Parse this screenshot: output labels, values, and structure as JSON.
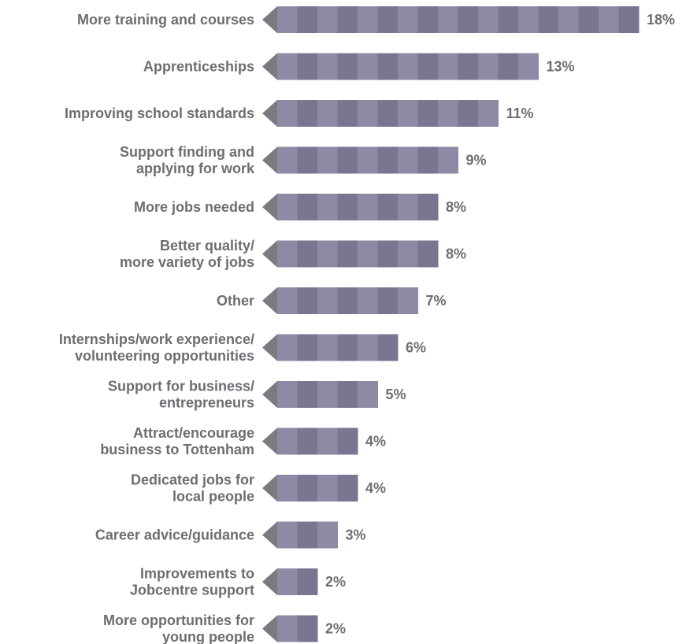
{
  "chart_data": {
    "type": "bar",
    "orientation": "horizontal",
    "title": "",
    "xlabel": "",
    "ylabel": "",
    "unit": "%",
    "grid": false,
    "legend": "none",
    "xlim": [
      0,
      18
    ],
    "categories": [
      [
        "More training and courses"
      ],
      [
        "Apprenticeships"
      ],
      [
        "Improving school standards"
      ],
      [
        "Support finding and",
        "applying for work"
      ],
      [
        "More jobs needed"
      ],
      [
        "Better quality/",
        "more variety of jobs"
      ],
      [
        "Other"
      ],
      [
        "Internships/work experience/",
        "volunteering opportunities"
      ],
      [
        "Support for business/",
        "entrepreneurs"
      ],
      [
        "Attract/encourage",
        "business to Tottenham"
      ],
      [
        "Dedicated jobs for",
        "local people"
      ],
      [
        "Career advice/guidance"
      ],
      [
        "Improvements to",
        "Jobcentre support"
      ],
      [
        "More opportunities for",
        "young people"
      ]
    ],
    "values": [
      18,
      13,
      11,
      9,
      8,
      8,
      7,
      6,
      5,
      4,
      4,
      3,
      2,
      2
    ],
    "value_labels": [
      "18%",
      "13%",
      "11%",
      "9%",
      "8%",
      "8%",
      "7%",
      "6%",
      "5%",
      "4%",
      "4%",
      "3%",
      "2%",
      "2%"
    ]
  },
  "colors": {
    "bar_light": "#8e8aa6",
    "bar_dark": "#7a7692",
    "bar_arrow": "#7a7a80",
    "text": "#6d6d73"
  }
}
